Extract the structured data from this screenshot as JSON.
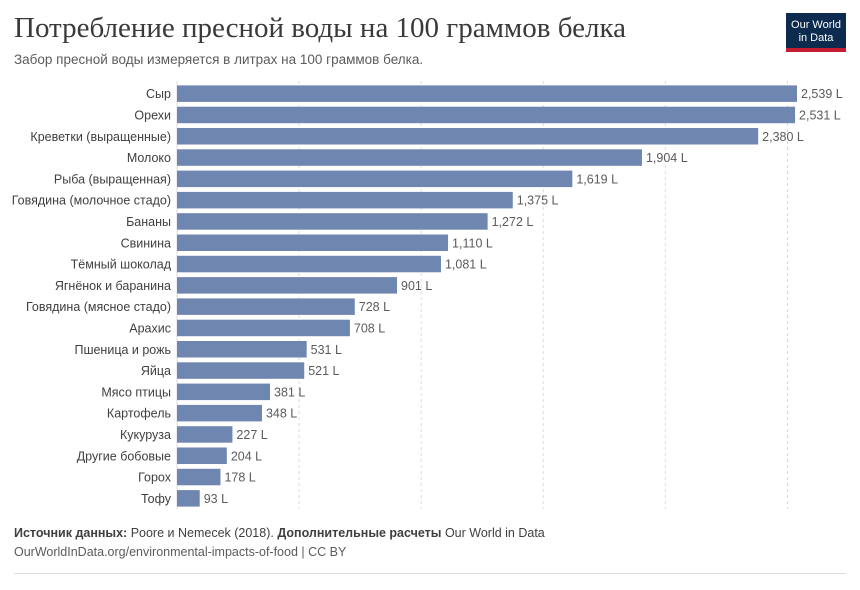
{
  "header": {
    "title": "Потребление пресной воды на 100 граммов белка",
    "subtitle": "Забор пресной воды измеряется в литрах на 100 граммов белка."
  },
  "logo": {
    "line1": "Our World",
    "line2": "in Data",
    "bg_color": "#0d2a4f",
    "accent_color": "#c41d32"
  },
  "footer": {
    "source_label": "Источник данных:",
    "source_text": " Poore и Nemecek (2018). ",
    "calc_label": "Дополнительные расчеты",
    "calc_text": " Our World in Data",
    "url": "OurWorldInData.org/environmental-impacts-of-food | CC BY"
  },
  "chart_data": {
    "type": "bar",
    "orientation": "horizontal",
    "title": "Потребление пресной воды на 100 граммов белка",
    "subtitle": "Забор пресной воды измеряется в литрах на 100 граммов белка.",
    "unit_suffix": " L",
    "bar_color": "#6f86b1",
    "grid": true,
    "xlim": [
      0,
      2539
    ],
    "gridlines": [
      0,
      500,
      1000,
      1500,
      2000,
      2500
    ],
    "categories": [
      "Сыр",
      "Орехи",
      "Креветки (выращенные)",
      "Молоко",
      "Рыба (выращенная)",
      "Говядина (молочное стадо)",
      "Бананы",
      "Свинина",
      "Тёмный шоколад",
      "Ягнёнок и баранина",
      "Говядина (мясное стадо)",
      "Арахис",
      "Пшеница и рожь",
      "Яйца",
      "Мясо птицы",
      "Картофель",
      "Кукуруза",
      "Другие бобовые",
      "Горох",
      "Тофу"
    ],
    "values": [
      2539,
      2531,
      2380,
      1904,
      1619,
      1375,
      1272,
      1110,
      1081,
      901,
      728,
      708,
      531,
      521,
      381,
      348,
      227,
      204,
      178,
      93
    ],
    "value_labels": [
      "2,539 L",
      "2,531 L",
      "2,380 L",
      "1,904 L",
      "1,619 L",
      "1,375 L",
      "1,272 L",
      "1,110 L",
      "1,081 L",
      "901 L",
      "728 L",
      "708 L",
      "531 L",
      "521 L",
      "381 L",
      "348 L",
      "227 L",
      "204 L",
      "178 L",
      "93 L"
    ]
  }
}
